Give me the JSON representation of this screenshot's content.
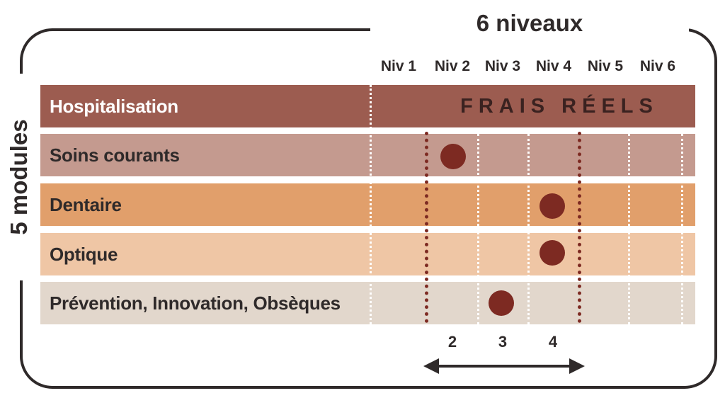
{
  "title_top": "6 niveaux",
  "title_left": "5 modules",
  "levels": [
    "Niv 1",
    "Niv 2",
    "Niv 3",
    "Niv 4",
    "Niv 5",
    "Niv 6"
  ],
  "modules": [
    {
      "label": "Hospitalisation",
      "color": "#9c5c50",
      "note": "FRAIS RÉELS"
    },
    {
      "label": "Soins courants",
      "color": "#c49a8f",
      "level": 2
    },
    {
      "label": "Dentaire",
      "color": "#e19f6b",
      "level": 4
    },
    {
      "label": "Optique",
      "color": "#efc6a5",
      "level": 4
    },
    {
      "label": "Prévention, Innovation, Obsèques",
      "color": "#e2d7cc",
      "level": 3
    }
  ],
  "range": {
    "min_label": "2",
    "mid_label": "3",
    "max_label": "4"
  },
  "accent_color": "#7d2a22"
}
